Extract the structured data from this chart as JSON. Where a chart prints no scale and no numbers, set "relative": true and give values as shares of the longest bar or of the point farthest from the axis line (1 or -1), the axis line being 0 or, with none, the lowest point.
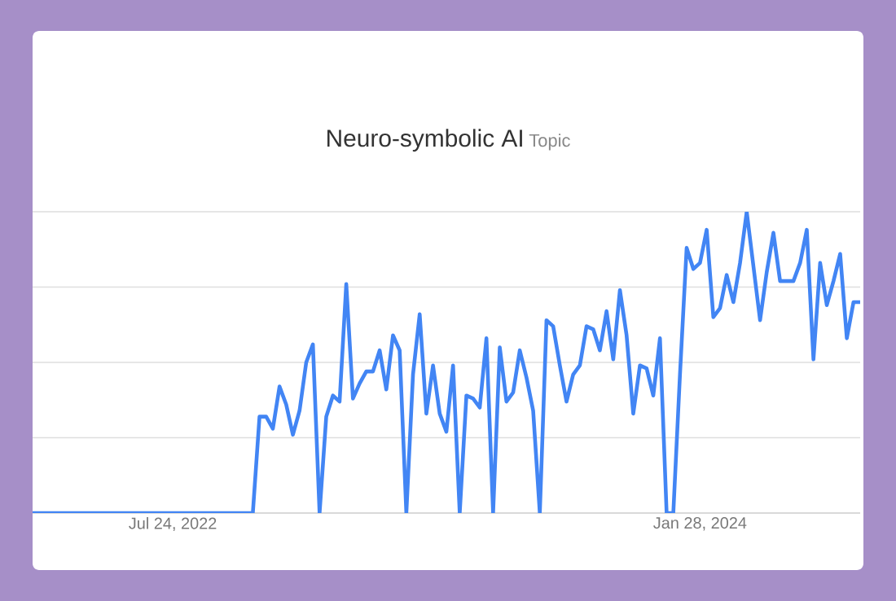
{
  "chart_data": {
    "type": "line",
    "title": "Neuro-symbolic AI",
    "subtitle": "Topic",
    "relative": true,
    "grid": "y",
    "color": "#4285f4",
    "x": [
      "2022-02-27",
      "2022-03-06",
      "2022-03-13",
      "2022-03-20",
      "2022-03-27",
      "2022-04-03",
      "2022-04-10",
      "2022-04-17",
      "2022-04-24",
      "2022-05-01",
      "2022-05-08",
      "2022-05-15",
      "2022-05-22",
      "2022-05-29",
      "2022-06-05",
      "2022-06-12",
      "2022-06-19",
      "2022-06-26",
      "2022-07-03",
      "2022-07-10",
      "2022-07-17",
      "2022-07-24",
      "2022-07-31",
      "2022-08-07",
      "2022-08-14",
      "2022-08-21",
      "2022-08-28",
      "2022-09-04",
      "2022-09-11",
      "2022-09-18",
      "2022-09-25",
      "2022-10-02",
      "2022-10-09",
      "2022-10-16",
      "2022-10-23",
      "2022-10-30",
      "2022-11-06",
      "2022-11-13",
      "2022-11-20",
      "2022-11-27",
      "2022-12-04",
      "2022-12-11",
      "2022-12-18",
      "2022-12-25",
      "2023-01-01",
      "2023-01-08",
      "2023-01-15",
      "2023-01-22",
      "2023-01-29",
      "2023-02-05",
      "2023-02-12",
      "2023-02-19",
      "2023-02-26",
      "2023-03-05",
      "2023-03-12",
      "2023-03-19",
      "2023-03-26",
      "2023-04-02",
      "2023-04-09",
      "2023-04-16",
      "2023-04-23",
      "2023-04-30",
      "2023-05-07",
      "2023-05-14",
      "2023-05-21",
      "2023-05-28",
      "2023-06-04",
      "2023-06-11",
      "2023-06-18",
      "2023-06-25",
      "2023-07-02",
      "2023-07-09",
      "2023-07-16",
      "2023-07-23",
      "2023-07-30",
      "2023-08-06",
      "2023-08-13",
      "2023-08-20",
      "2023-08-27",
      "2023-09-03",
      "2023-09-10",
      "2023-09-17",
      "2023-09-24",
      "2023-10-01",
      "2023-10-08",
      "2023-10-15",
      "2023-10-22",
      "2023-10-29",
      "2023-11-05",
      "2023-11-12",
      "2023-11-19",
      "2023-11-26",
      "2023-12-03",
      "2023-12-10",
      "2023-12-17",
      "2023-12-24",
      "2023-12-31",
      "2024-01-07",
      "2024-01-14",
      "2024-01-21",
      "2024-01-28",
      "2024-02-04",
      "2024-02-11",
      "2024-02-18",
      "2024-02-25",
      "2024-03-03",
      "2024-03-10",
      "2024-03-17",
      "2024-03-24",
      "2024-03-31",
      "2024-04-07",
      "2024-04-14",
      "2024-04-21",
      "2024-04-28",
      "2024-05-05",
      "2024-05-12",
      "2024-05-19",
      "2024-05-26",
      "2024-06-02",
      "2024-06-09",
      "2024-06-16",
      "2024-06-23",
      "2024-06-30",
      "2024-07-07",
      "2024-07-14"
    ],
    "values": [
      0,
      0,
      0,
      0,
      0,
      0,
      0,
      0,
      0,
      0,
      0,
      0,
      0,
      0,
      0,
      0,
      0,
      0,
      0,
      0,
      0,
      0,
      0,
      0,
      0,
      0,
      0,
      0,
      0,
      0,
      0,
      0,
      0,
      0,
      0.32,
      0.32,
      0.28,
      0.42,
      0.36,
      0.26,
      0.34,
      0.5,
      0.56,
      0,
      0.32,
      0.39,
      0.37,
      0.76,
      0.38,
      0.43,
      0.47,
      0.47,
      0.54,
      0.41,
      0.59,
      0.54,
      0,
      0.46,
      0.66,
      0.33,
      0.49,
      0.33,
      0.27,
      0.49,
      0,
      0.39,
      0.38,
      0.35,
      0.58,
      0,
      0.55,
      0.37,
      0.4,
      0.54,
      0.45,
      0.34,
      0,
      0.64,
      0.62,
      0.49,
      0.37,
      0.46,
      0.49,
      0.62,
      0.61,
      0.54,
      0.67,
      0.51,
      0.74,
      0.59,
      0.33,
      0.49,
      0.48,
      0.39,
      0.58,
      0,
      0,
      0.46,
      0.88,
      0.81,
      0.83,
      0.94,
      0.65,
      0.68,
      0.79,
      0.7,
      0.83,
      1,
      0.82,
      0.64,
      0.8,
      0.93,
      0.77,
      0.77,
      0.77,
      0.83,
      0.94,
      0.51,
      0.83,
      0.69,
      0.77,
      0.86,
      0.58,
      0.7,
      0.7
    ],
    "xlim": [
      "2022-02-27",
      "2024-07-14"
    ],
    "xticks": [
      {
        "value": "2022-07-24",
        "label": "Jul 24, 2022"
      },
      {
        "value": "2024-01-28",
        "label": "Jan 28, 2024"
      }
    ]
  }
}
